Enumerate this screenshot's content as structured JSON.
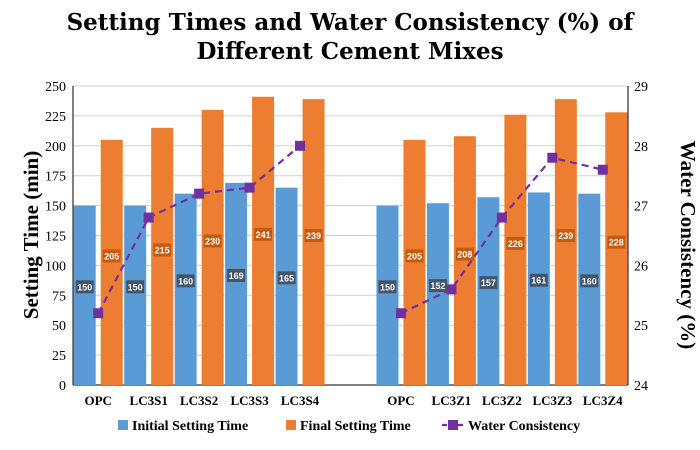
{
  "chart_data": {
    "type": "bar",
    "title_lines": [
      "Setting Times and Water Consistency (%) of",
      "Different Cement Mixes"
    ],
    "ylabel_left": "Setting Time (min)",
    "ylabel_right": "Water Consistency (%)",
    "ylim_left": [
      0,
      250
    ],
    "yticks_left": [
      0,
      25,
      50,
      75,
      100,
      125,
      150,
      175,
      200,
      225,
      250
    ],
    "ylim_right": [
      24,
      29
    ],
    "yticks_right": [
      24,
      25,
      26,
      27,
      28,
      29
    ],
    "grid": true,
    "legend_position": "bottom",
    "groups": [
      {
        "categories": [
          "OPC",
          "LC3S1",
          "LC3S2",
          "LC3S3",
          "LC3S4"
        ],
        "initial": [
          150,
          150,
          160,
          169,
          165
        ],
        "final": [
          205,
          215,
          230,
          241,
          239
        ],
        "water": [
          25.2,
          26.8,
          27.2,
          27.3,
          28.0
        ]
      },
      {
        "categories": [
          "OPC",
          "LC3Z1",
          "LC3Z2",
          "LC3Z3",
          "LC3Z4"
        ],
        "initial": [
          150,
          152,
          157,
          161,
          160
        ],
        "final": [
          205,
          208,
          226,
          239,
          228
        ],
        "water": [
          25.2,
          25.6,
          26.8,
          27.8,
          27.6
        ]
      }
    ],
    "series": [
      {
        "name": "Initial Setting Time",
        "key": "initial",
        "kind": "bar",
        "color": "#5b9bd5",
        "label_bg": "#44546a"
      },
      {
        "name": "Final Setting Time",
        "key": "final",
        "kind": "bar",
        "color": "#ed7d31",
        "label_bg": "#c55a11"
      },
      {
        "name": "Water Consistency",
        "key": "water",
        "kind": "line",
        "axis": "right",
        "color": "#7030a0"
      }
    ]
  }
}
